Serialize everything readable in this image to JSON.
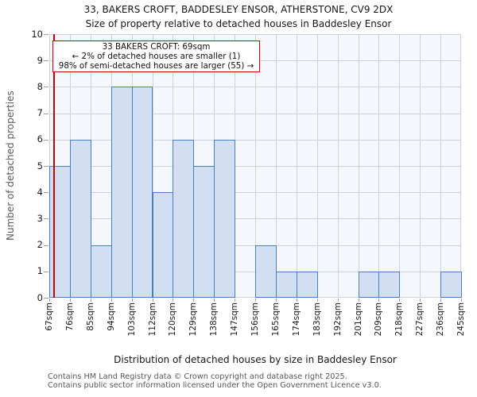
{
  "header": {
    "title": "33, BAKERS CROFT, BADDESLEY ENSOR, ATHERSTONE, CV9 2DX",
    "subtitle": "Size of property relative to detached houses in Baddesley Ensor"
  },
  "annotation": {
    "line1": "33 BAKERS CROFT: 69sqm",
    "line2": "← 2% of detached houses are smaller (1)",
    "line3": "98% of semi-detached houses are larger (55) →"
  },
  "chart_data": {
    "type": "bar",
    "title": "33, BAKERS CROFT, BADDESLEY ENSOR, ATHERSTONE, CV9 2DX — Size of property relative to detached houses in Baddesley Ensor",
    "xlabel": "Distribution of detached houses by size in Baddesley Ensor",
    "ylabel": "Number of detached properties",
    "categories": [
      "67sqm",
      "76sqm",
      "85sqm",
      "94sqm",
      "103sqm",
      "112sqm",
      "120sqm",
      "129sqm",
      "138sqm",
      "147sqm",
      "156sqm",
      "165sqm",
      "174sqm",
      "183sqm",
      "192sqm",
      "201sqm",
      "209sqm",
      "218sqm",
      "227sqm",
      "236sqm",
      "245sqm"
    ],
    "values": [
      5,
      6,
      2,
      8,
      8,
      4,
      6,
      5,
      6,
      0,
      2,
      1,
      1,
      0,
      0,
      1,
      1,
      0,
      0,
      1
    ],
    "ylim": [
      0,
      10
    ],
    "yticks": [
      0,
      1,
      2,
      3,
      4,
      5,
      6,
      7,
      8,
      9,
      10
    ],
    "grid": true,
    "legend": "none",
    "marker": {
      "label": "33 BAKERS CROFT",
      "value_sqm": 69,
      "axis_min_sqm": 67,
      "axis_max_sqm": 245
    },
    "colors": {
      "bar_fill": "#d2dff2",
      "bar_stroke": "#4a7ec0",
      "marker_line": "#cc0000",
      "annotation_border": "#cc0000",
      "plot_background": "#f4f7fc",
      "gridline": "#ccd1da"
    }
  },
  "footer": {
    "line1": "Contains HM Land Registry data © Crown copyright and database right 2025.",
    "line2": "Contains public sector information licensed under the Open Government Licence v3.0."
  }
}
